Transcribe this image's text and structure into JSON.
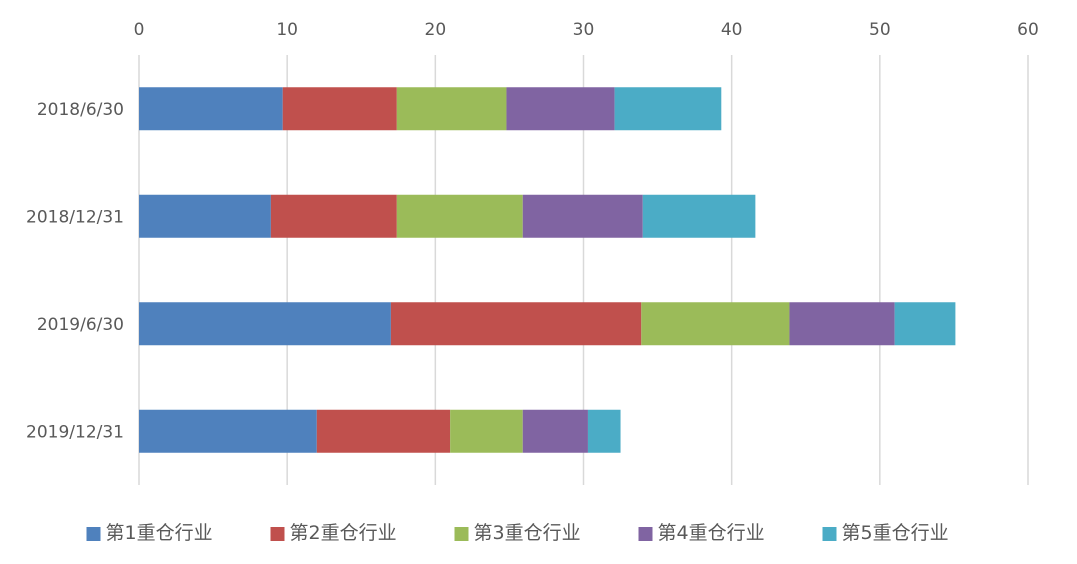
{
  "chart_data": {
    "type": "bar",
    "orientation": "horizontal",
    "stacked": true,
    "categories": [
      "2018/6/30",
      "2018/12/31",
      "2019/6/30",
      "2019/12/31"
    ],
    "xlim": [
      0,
      60
    ],
    "x_ticks": [
      0,
      10,
      20,
      30,
      40,
      50,
      60
    ],
    "x_axis_position": "top",
    "grid": true,
    "legend": "bottom",
    "series": [
      {
        "name": "第1重仓行业",
        "color": "#4F81BD",
        "values": [
          9.7,
          8.9,
          17.0,
          12.0
        ]
      },
      {
        "name": "第2重仓行业",
        "color": "#C0504D",
        "values": [
          7.7,
          8.5,
          16.9,
          9.0
        ]
      },
      {
        "name": "第3重仓行业",
        "color": "#9BBB59",
        "values": [
          7.4,
          8.5,
          10.0,
          4.9
        ]
      },
      {
        "name": "第4重仓行业",
        "color": "#8064A2",
        "values": [
          7.3,
          8.1,
          7.1,
          4.4
        ]
      },
      {
        "name": "第5重仓行业",
        "color": "#4BACC6",
        "values": [
          7.2,
          7.6,
          4.1,
          2.2
        ]
      }
    ]
  }
}
